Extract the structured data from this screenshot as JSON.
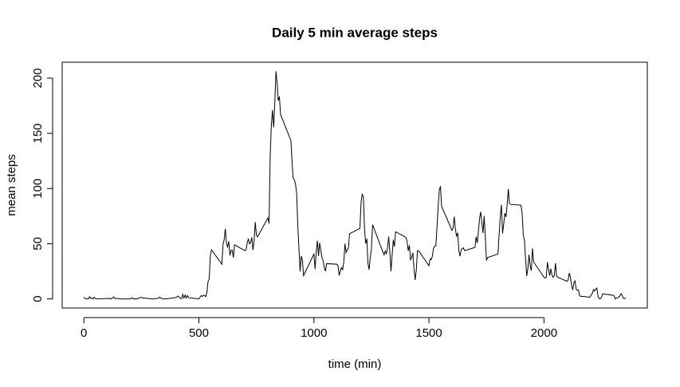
{
  "chart_data": {
    "type": "line",
    "title": "Daily 5 min average steps",
    "x_label": "time (min)",
    "y_label": "mean steps",
    "color": "#000000",
    "x": [
      0,
      5,
      10,
      15,
      20,
      25,
      30,
      35,
      40,
      45,
      50,
      55,
      100,
      105,
      110,
      115,
      120,
      125,
      130,
      135,
      140,
      145,
      150,
      155,
      200,
      210,
      215,
      225,
      230,
      250,
      255,
      300,
      325,
      330,
      335,
      345,
      350,
      355,
      400,
      410,
      420,
      425,
      430,
      435,
      440,
      445,
      450,
      455,
      500,
      505,
      510,
      515,
      520,
      525,
      530,
      535,
      540,
      545,
      550,
      555,
      600,
      605,
      610,
      615,
      620,
      625,
      630,
      635,
      640,
      645,
      650,
      655,
      700,
      705,
      710,
      715,
      720,
      725,
      730,
      735,
      740,
      745,
      750,
      755,
      800,
      805,
      810,
      815,
      820,
      825,
      830,
      835,
      840,
      845,
      850,
      855,
      900,
      905,
      910,
      915,
      920,
      925,
      930,
      935,
      940,
      945,
      950,
      955,
      1000,
      1005,
      1010,
      1015,
      1020,
      1025,
      1030,
      1035,
      1040,
      1045,
      1050,
      1055,
      1100,
      1105,
      1110,
      1115,
      1120,
      1125,
      1130,
      1135,
      1140,
      1145,
      1150,
      1155,
      1200,
      1205,
      1210,
      1215,
      1220,
      1225,
      1230,
      1235,
      1240,
      1245,
      1250,
      1255,
      1300,
      1305,
      1310,
      1315,
      1320,
      1325,
      1330,
      1335,
      1340,
      1345,
      1350,
      1355,
      1400,
      1405,
      1410,
      1415,
      1420,
      1425,
      1430,
      1435,
      1440,
      1445,
      1450,
      1455,
      1500,
      1505,
      1510,
      1515,
      1520,
      1525,
      1530,
      1535,
      1540,
      1545,
      1550,
      1555,
      1600,
      1605,
      1610,
      1615,
      1620,
      1625,
      1630,
      1635,
      1640,
      1645,
      1650,
      1655,
      1700,
      1705,
      1710,
      1715,
      1720,
      1725,
      1730,
      1735,
      1740,
      1745,
      1750,
      1755,
      1800,
      1805,
      1810,
      1815,
      1820,
      1825,
      1830,
      1835,
      1840,
      1845,
      1850,
      1855,
      1900,
      1905,
      1910,
      1915,
      1920,
      1925,
      1930,
      1935,
      1940,
      1945,
      1950,
      1955,
      2000,
      2005,
      2010,
      2015,
      2020,
      2025,
      2030,
      2035,
      2040,
      2045,
      2050,
      2055,
      2100,
      2105,
      2110,
      2115,
      2120,
      2125,
      2130,
      2135,
      2140,
      2145,
      2150,
      2155,
      2200,
      2205,
      2210,
      2215,
      2220,
      2225,
      2230,
      2235,
      2240,
      2245,
      2250,
      2255,
      2300,
      2305,
      2310,
      2315,
      2320,
      2325,
      2330,
      2335,
      2340,
      2345,
      2350,
      2355
    ],
    "values": [
      1.7,
      0.3,
      0.1,
      0.2,
      0.1,
      2.1,
      0.5,
      0.9,
      0,
      1.5,
      0.3,
      0.1,
      0.3,
      0.7,
      0.2,
      0.3,
      0,
      1.1,
      1.8,
      0.2,
      0.2,
      0.4,
      0.3,
      0,
      0,
      1.1,
      0,
      0.1,
      0,
      1.5,
      0.9,
      0,
      0.6,
      1.6,
      0.6,
      0.1,
      0,
      0,
      1.2,
      2.6,
      0.3,
      0.4,
      4.1,
      0.7,
      3.5,
      0.8,
      3.1,
      1.1,
      0,
      1.6,
      3,
      2.2,
      3.3,
      3,
      2.1,
      6.1,
      16,
      18.3,
      39.5,
      44.5,
      31.5,
      49.3,
      53.8,
      63.5,
      50,
      47.1,
      52.2,
      39.3,
      44,
      44.2,
      37.4,
      49,
      43.8,
      44.4,
      50.5,
      54.5,
      49.9,
      50.98,
      55.7,
      44.3,
      52.3,
      69.5,
      57.8,
      56.2,
      73.4,
      68.2,
      129.4,
      157.5,
      171.2,
      155.4,
      177.3,
      206.2,
      195.9,
      179.6,
      183.4,
      167,
      143.5,
      124,
      109.1,
      108.1,
      103.7,
      95.96,
      66.2,
      45.2,
      24.8,
      38.8,
      34.98,
      21.1,
      40.6,
      26.97,
      42.4,
      52.7,
      38.9,
      50.8,
      44.3,
      37.4,
      34.7,
      28.3,
      25.1,
      31.9,
      31.4,
      29.7,
      21.3,
      25.5,
      28.4,
      26.5,
      33.4,
      50,
      42,
      44.6,
      46,
      59,
      63.9,
      87.6,
      94.8,
      92.8,
      63.4,
      50.2,
      54.5,
      32.4,
      26.5,
      37.7,
      45.1,
      67.3,
      42.3,
      39.9,
      43.3,
      40.98,
      46.2,
      56.4,
      42.8,
      25.1,
      39.96,
      53.5,
      47.3,
      60.8,
      55.8,
      51.96,
      43.6,
      48.7,
      35.5,
      37.5,
      41.8,
      27.5,
      17.1,
      26.1,
      43.6,
      43.8,
      30,
      36.1,
      35.5,
      38.8,
      45.96,
      47.8,
      48.1,
      65.3,
      82.9,
      98.7,
      102.1,
      83.96,
      62.1,
      64.1,
      74.5,
      63.2,
      56.9,
      59.8,
      43.9,
      38.6,
      44.7,
      45.5,
      46.2,
      43.7,
      46.6,
      56.3,
      50.7,
      61.2,
      72.7,
      78.9,
      68.9,
      59.7,
      75.1,
      56.5,
      34.8,
      37.5,
      40.7,
      58,
      74.7,
      85.3,
      59.3,
      67.8,
      77.7,
      74.2,
      85.3,
      99.5,
      86.6,
      85.6,
      84.9,
      77.8,
      58,
      53.4,
      36.3,
      20.7,
      27.4,
      40,
      30.2,
      25.5,
      45.7,
      33.5,
      19.6,
      19,
      19.3,
      33.3,
      26.8,
      21.2,
      27.3,
      21.3,
      19.5,
      21.3,
      32.3,
      20.2,
      15.9,
      17.2,
      23.5,
      19.2,
      12.5,
      8,
      14.7,
      16.3,
      8.7,
      7.8,
      8.1,
      2.6,
      1.5,
      3.7,
      4.8,
      8.5,
      7.1,
      8.7,
      9.8,
      2.2,
      0.3,
      0.1,
      1.6,
      4.6,
      3.3,
      2.8,
      0,
      0.8,
      1,
      1.6,
      2.6,
      4.7,
      3.3,
      0.6,
      0.2,
      1.1
    ],
    "xlim": [
      -94.2,
      2449.2
    ],
    "xticks": [
      0,
      500,
      1000,
      1500,
      2000
    ],
    "ylim": [
      -8.25,
      214.42
    ],
    "yticks": [
      0,
      50,
      100,
      150,
      200
    ]
  }
}
